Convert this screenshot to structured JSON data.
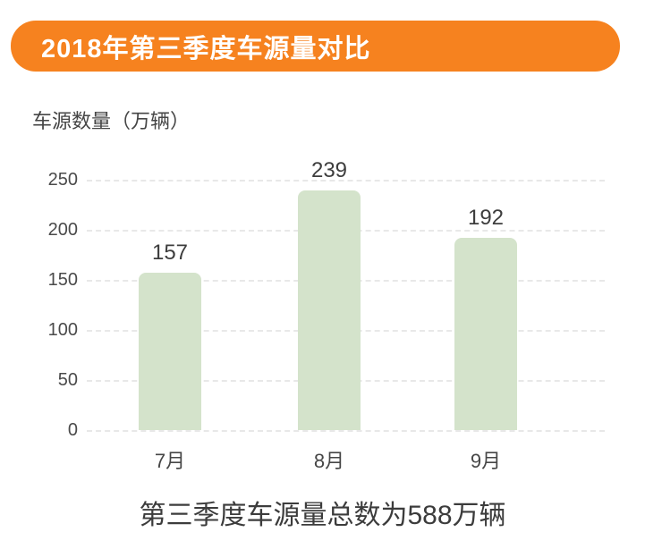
{
  "header": {
    "title": "2018年第三季度车源量对比",
    "background_color": "#F6821F",
    "text_color": "#FFFFFF"
  },
  "chart_data": {
    "type": "bar",
    "title": "2018年第三季度车源量对比",
    "ylabel": "车源数量（万辆）",
    "xlabel": "",
    "categories": [
      "7月",
      "8月",
      "9月"
    ],
    "values": [
      157,
      239,
      192
    ],
    "ylim": [
      0,
      250
    ],
    "yticks": [
      250,
      200,
      150,
      100,
      50,
      0
    ],
    "grid": "horizontal-dashed",
    "legend_position": "none",
    "bar_color": "#D4E3CB",
    "gridline_color": "#e8e8e8"
  },
  "footer": {
    "summary": "第三季度车源量总数为588万辆"
  }
}
